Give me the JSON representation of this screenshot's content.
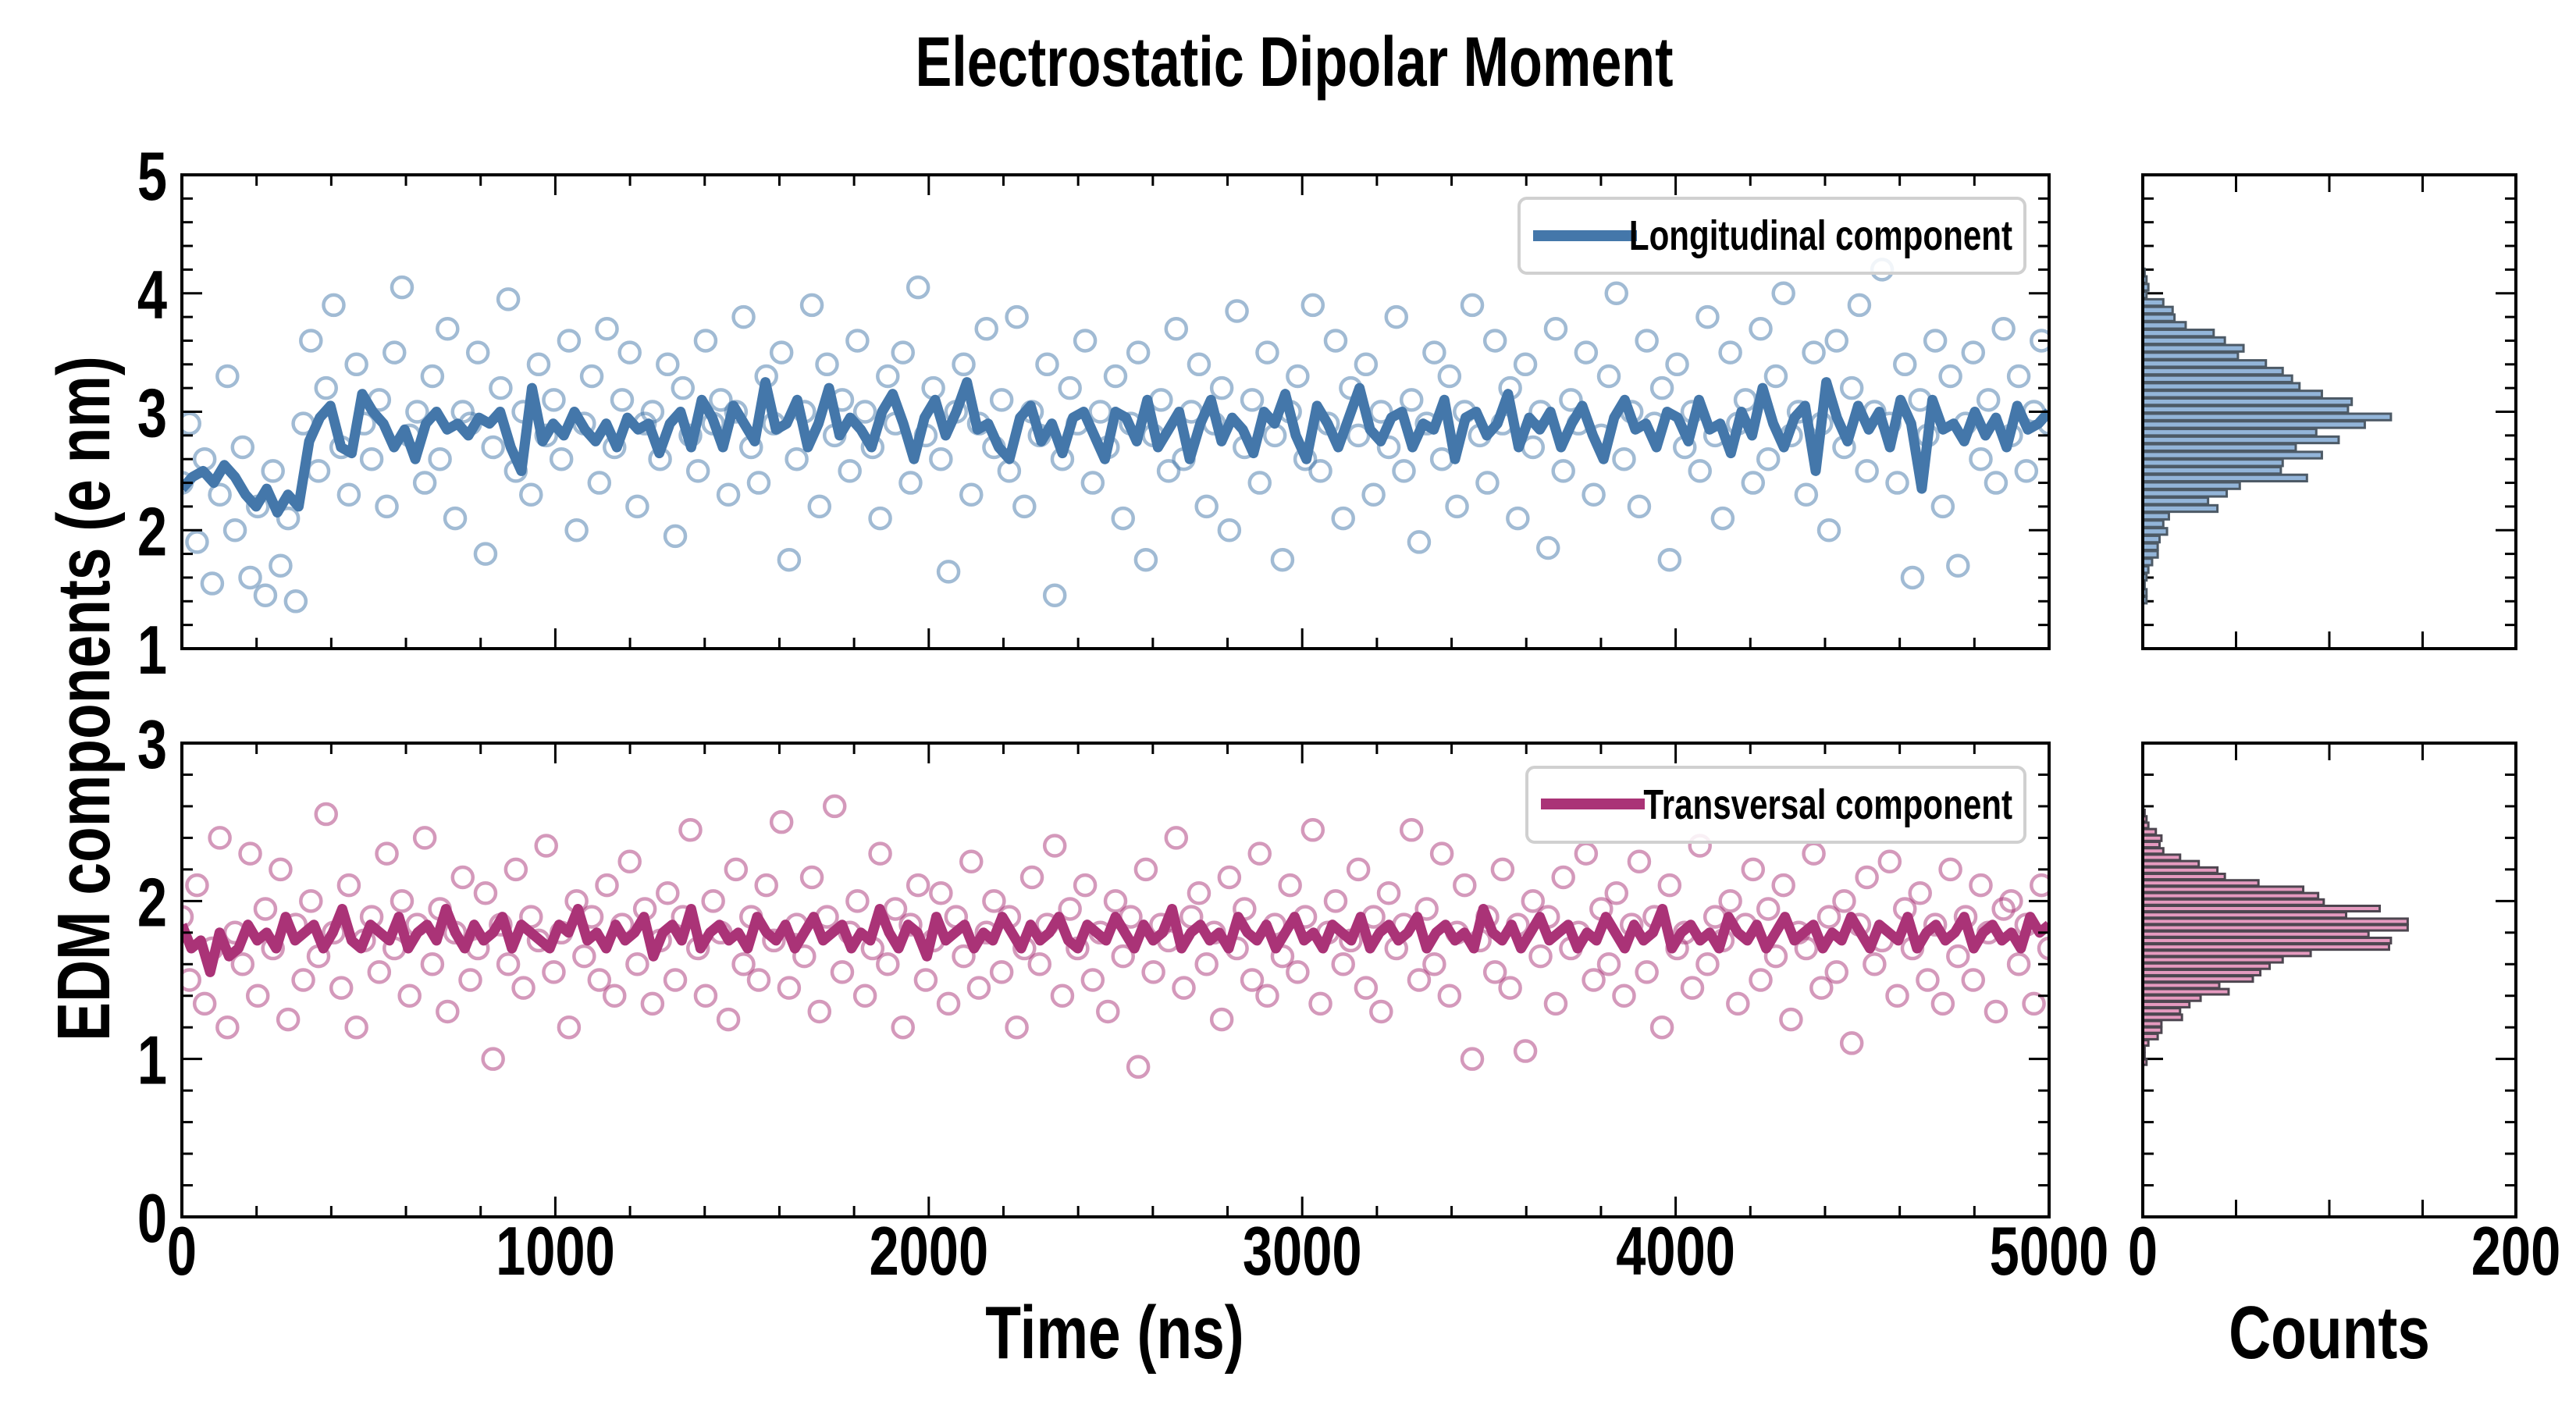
{
  "chart_data": [
    {
      "type": "scatter+line",
      "panel": "top",
      "title": "Electrostatic Dipolar Moment",
      "xlabel": "",
      "ylabel": "EDM components (e nm)",
      "xlim": [
        0,
        5000
      ],
      "ylim": [
        1,
        5
      ],
      "yticks": [
        "1",
        "2",
        "3",
        "4",
        "5"
      ],
      "legend": {
        "label": "Longitudinal component",
        "position": "top-right"
      },
      "colors": {
        "line": "#4477aa",
        "scatter": "#4477aa"
      },
      "x_range": [
        0,
        5000
      ],
      "line_values": [
        2.35,
        2.45,
        2.5,
        2.4,
        2.55,
        2.45,
        2.3,
        2.2,
        2.35,
        2.15,
        2.3,
        2.2,
        2.75,
        2.95,
        3.05,
        2.7,
        2.65,
        3.15,
        3.0,
        2.9,
        2.7,
        2.85,
        2.6,
        2.9,
        3.0,
        2.85,
        2.9,
        2.8,
        2.95,
        2.9,
        3.0,
        2.7,
        2.5,
        3.2,
        2.75,
        2.9,
        2.8,
        3.0,
        2.85,
        2.75,
        2.9,
        2.7,
        2.95,
        2.85,
        2.9,
        2.65,
        2.9,
        3.0,
        2.7,
        3.1,
        2.95,
        2.7,
        3.05,
        2.9,
        2.75,
        3.25,
        2.85,
        2.9,
        3.1,
        2.7,
        2.9,
        3.2,
        2.8,
        2.95,
        2.85,
        2.7,
        3.0,
        3.15,
        2.9,
        2.6,
        2.95,
        3.1,
        2.8,
        3.0,
        3.25,
        2.85,
        2.9,
        2.7,
        2.6,
        2.95,
        3.05,
        2.75,
        2.9,
        2.65,
        2.95,
        3.0,
        2.8,
        2.6,
        3.0,
        2.95,
        2.75,
        3.1,
        2.7,
        2.85,
        3.0,
        2.6,
        2.9,
        3.1,
        2.75,
        2.95,
        2.85,
        2.65,
        3.0,
        2.9,
        3.15,
        2.8,
        2.6,
        3.05,
        2.9,
        2.7,
        2.95,
        3.2,
        2.85,
        2.75,
        2.95,
        3.0,
        2.7,
        2.9,
        2.85,
        3.1,
        2.6,
        2.95,
        3.0,
        2.8,
        2.9,
        3.15,
        2.7,
        2.95,
        2.85,
        3.0,
        2.7,
        2.9,
        3.05,
        2.8,
        2.6,
        2.95,
        3.1,
        2.85,
        2.9,
        2.7,
        3.0,
        2.95,
        2.75,
        3.1,
        2.85,
        2.9,
        2.65,
        3.0,
        2.8,
        3.2,
        2.9,
        2.7,
        2.95,
        3.05,
        2.5,
        3.25,
        2.95,
        2.75,
        3.05,
        2.85,
        3.0,
        2.7,
        3.1,
        2.9,
        2.35,
        3.1,
        2.85,
        2.9,
        2.75,
        3.0,
        2.8,
        2.95,
        2.7,
        3.05,
        2.85,
        2.9,
        3.0
      ],
      "scatter_values": [
        2.4,
        2.9,
        1.9,
        2.6,
        1.55,
        2.3,
        3.3,
        2.0,
        2.7,
        1.6,
        2.2,
        1.45,
        2.5,
        1.7,
        2.1,
        1.4,
        2.9,
        3.6,
        2.5,
        3.2,
        3.9,
        2.7,
        2.3,
        3.4,
        2.9,
        2.6,
        3.1,
        2.2,
        3.5,
        4.05,
        2.8,
        3.0,
        2.4,
        3.3,
        2.6,
        3.7,
        2.1,
        3.0,
        2.9,
        3.5,
        1.8,
        2.7,
        3.2,
        3.95,
        2.5,
        3.0,
        2.3,
        3.4,
        2.8,
        3.1,
        2.6,
        3.6,
        2.0,
        2.9,
        3.3,
        2.4,
        3.7,
        2.7,
        3.1,
        3.5,
        2.2,
        2.9,
        3.0,
        2.6,
        3.4,
        1.95,
        3.2,
        2.8,
        2.5,
        3.6,
        2.9,
        3.1,
        2.3,
        3.0,
        3.8,
        2.7,
        2.4,
        3.3,
        2.9,
        3.5,
        1.75,
        2.6,
        3.0,
        3.9,
        2.2,
        3.4,
        2.8,
        3.1,
        2.5,
        3.6,
        3.0,
        2.7,
        2.1,
        3.3,
        2.9,
        3.5,
        2.4,
        4.05,
        2.8,
        3.2,
        2.6,
        1.65,
        3.0,
        3.4,
        2.3,
        2.9,
        3.7,
        2.7,
        3.1,
        2.5,
        3.8,
        2.2,
        3.0,
        2.8,
        3.4,
        1.45,
        2.6,
        3.2,
        2.9,
        3.6,
        2.4,
        3.0,
        2.7,
        3.3,
        2.1,
        2.9,
        3.5,
        1.75,
        2.8,
        3.1,
        2.5,
        3.7,
        2.6,
        3.0,
        3.4,
        2.2,
        2.9,
        3.2,
        2.0,
        3.85,
        2.7,
        3.1,
        2.4,
        3.5,
        2.8,
        1.75,
        3.0,
        3.3,
        2.6,
        3.9,
        2.5,
        2.9,
        3.6,
        2.1,
        3.2,
        2.8,
        3.4,
        2.3,
        3.0,
        2.7,
        3.8,
        2.5,
        3.1,
        1.9,
        2.9,
        3.5,
        2.6,
        3.3,
        2.2,
        3.0,
        3.9,
        2.8,
        2.4,
        3.6,
        2.9,
        3.2,
        2.1,
        3.4,
        2.7,
        3.0,
        1.85,
        3.7,
        2.5,
        3.1,
        2.9,
        3.5,
        2.3,
        2.8,
        3.3,
        4.0,
        2.6,
        3.0,
        2.2,
        3.6,
        2.9,
        3.2,
        1.75,
        3.4,
        2.7,
        3.0,
        2.5,
        3.8,
        2.8,
        2.1,
        3.5,
        2.9,
        3.1,
        2.4,
        3.7,
        2.6,
        3.3,
        4.0,
        2.8,
        3.0,
        2.3,
        3.5,
        2.9,
        2.0,
        3.6,
        2.7,
        3.2,
        3.9,
        2.5,
        3.0,
        4.2,
        2.9,
        2.4,
        3.4,
        1.6,
        3.1,
        2.8,
        3.6,
        2.2,
        3.3,
        1.7,
        2.9,
        3.5,
        2.6,
        3.1,
        2.4,
        3.7,
        2.8,
        3.3,
        2.5,
        3.0,
        3.6,
        2.9
      ],
      "histogram": {
        "xlabel": "",
        "xlim": [
          0,
          200
        ],
        "xticks_labeled": [],
        "bin_center_range": [
          4.18,
          1.41
        ],
        "counts": [
          1,
          2,
          3,
          2,
          11,
          16,
          17,
          23,
          38,
          44,
          54,
          51,
          66,
          75,
          80,
          84,
          96,
          112,
          110,
          133,
          119,
          93,
          105,
          82,
          96,
          75,
          74,
          88,
          52,
          45,
          35,
          40,
          14,
          11,
          13,
          9,
          8,
          8,
          5,
          3,
          2,
          1,
          2,
          2
        ],
        "colors": {
          "fill": "#93b5d9",
          "edge": "#4d5a66"
        }
      }
    },
    {
      "type": "scatter+line",
      "panel": "bottom",
      "xlabel": "Time (ns)",
      "xlim": [
        0,
        5000
      ],
      "ylim": [
        0,
        3
      ],
      "xticks": [
        "0",
        "1000",
        "2000",
        "3000",
        "4000",
        "5000"
      ],
      "yticks": [
        "0",
        "1",
        "2",
        "3"
      ],
      "legend": {
        "label": "Transversal component",
        "position": "top-right"
      },
      "colors": {
        "line": "#aa3377",
        "scatter": "#aa3377"
      },
      "x_range": [
        0,
        5000
      ],
      "line_values": [
        1.85,
        1.7,
        1.75,
        1.55,
        1.8,
        1.65,
        1.7,
        1.85,
        1.75,
        1.8,
        1.7,
        1.9,
        1.75,
        1.8,
        1.85,
        1.7,
        1.8,
        1.95,
        1.75,
        1.7,
        1.85,
        1.8,
        1.75,
        1.9,
        1.7,
        1.8,
        1.85,
        1.75,
        1.95,
        1.8,
        1.7,
        1.85,
        1.75,
        1.8,
        1.9,
        1.7,
        1.85,
        1.8,
        1.75,
        1.7,
        1.85,
        1.8,
        1.95,
        1.75,
        1.8,
        1.7,
        1.85,
        1.75,
        1.8,
        1.9,
        1.65,
        1.8,
        1.85,
        1.75,
        1.95,
        1.7,
        1.8,
        1.85,
        1.75,
        1.8,
        1.7,
        1.9,
        1.8,
        1.75,
        1.85,
        1.7,
        1.8,
        1.9,
        1.75,
        1.8,
        1.85,
        1.7,
        1.8,
        1.75,
        1.95,
        1.8,
        1.7,
        1.85,
        1.8,
        1.65,
        1.9,
        1.75,
        1.8,
        1.85,
        1.7,
        1.8,
        1.75,
        1.9,
        1.8,
        1.7,
        1.85,
        1.75,
        1.8,
        1.9,
        1.75,
        1.7,
        1.85,
        1.8,
        1.75,
        1.9,
        1.8,
        1.7,
        1.85,
        1.75,
        1.8,
        1.95,
        1.7,
        1.8,
        1.85,
        1.75,
        1.8,
        1.7,
        1.9,
        1.8,
        1.75,
        1.85,
        1.7,
        1.8,
        1.9,
        1.75,
        1.8,
        1.7,
        1.85,
        1.8,
        1.75,
        1.9,
        1.7,
        1.8,
        1.85,
        1.75,
        1.8,
        1.9,
        1.7,
        1.8,
        1.85,
        1.75,
        1.8,
        1.7,
        1.95,
        1.8,
        1.75,
        1.85,
        1.7,
        1.8,
        1.9,
        1.75,
        1.8,
        1.85,
        1.7,
        1.8,
        1.75,
        1.9,
        1.8,
        1.7,
        1.85,
        1.75,
        1.8,
        1.95,
        1.7,
        1.8,
        1.85,
        1.75,
        1.8,
        1.7,
        1.9,
        1.8,
        1.75,
        1.85,
        1.7,
        1.8,
        1.9,
        1.75,
        1.8,
        1.85,
        1.7,
        1.8,
        1.75,
        1.9,
        1.8,
        1.7,
        1.85,
        1.8,
        1.75,
        1.9,
        1.7,
        1.8,
        1.85,
        1.75,
        1.8,
        1.9,
        1.7,
        1.8,
        1.85,
        1.75,
        1.8,
        1.7,
        1.9,
        1.8,
        1.85
      ],
      "scatter_values": [
        1.9,
        1.5,
        2.1,
        1.35,
        1.7,
        2.4,
        1.2,
        1.8,
        1.6,
        2.3,
        1.4,
        1.95,
        1.7,
        2.2,
        1.25,
        1.85,
        1.5,
        2.0,
        1.65,
        2.55,
        1.8,
        1.45,
        2.1,
        1.2,
        1.75,
        1.9,
        1.55,
        2.3,
        1.7,
        2.0,
        1.4,
        1.85,
        2.4,
        1.6,
        1.95,
        1.3,
        1.8,
        2.15,
        1.5,
        1.7,
        2.05,
        1.0,
        1.85,
        1.6,
        2.2,
        1.45,
        1.9,
        1.75,
        2.35,
        1.55,
        1.8,
        1.2,
        2.0,
        1.65,
        1.9,
        1.5,
        2.1,
        1.4,
        1.85,
        2.25,
        1.6,
        1.95,
        1.35,
        1.75,
        2.05,
        1.5,
        1.9,
        2.45,
        1.7,
        1.4,
        2.0,
        1.8,
        1.25,
        2.2,
        1.6,
        1.9,
        1.5,
        2.1,
        1.75,
        2.5,
        1.45,
        1.85,
        1.65,
        2.15,
        1.3,
        1.9,
        2.6,
        1.55,
        1.8,
        2.0,
        1.4,
        1.7,
        2.3,
        1.6,
        1.95,
        1.2,
        1.85,
        2.1,
        1.5,
        1.75,
        2.05,
        1.35,
        1.9,
        1.65,
        2.25,
        1.45,
        1.8,
        2.0,
        1.55,
        1.9,
        1.2,
        1.7,
        2.15,
        1.6,
        1.85,
        2.35,
        1.4,
        1.95,
        1.7,
        2.1,
        1.5,
        1.8,
        1.3,
        2.0,
        1.65,
        1.9,
        0.95,
        2.2,
        1.55,
        1.85,
        1.75,
        2.4,
        1.45,
        1.9,
        2.05,
        1.6,
        1.8,
        1.25,
        2.15,
        1.7,
        1.95,
        1.5,
        2.3,
        1.4,
        1.85,
        1.65,
        2.1,
        1.55,
        1.9,
        2.45,
        1.35,
        1.8,
        2.0,
        1.6,
        1.75,
        2.2,
        1.45,
        1.9,
        1.3,
        2.05,
        1.7,
        1.85,
        2.45,
        1.5,
        1.95,
        1.6,
        2.3,
        1.4,
        1.8,
        2.1,
        1.0,
        1.75,
        1.9,
        1.55,
        2.2,
        1.45,
        1.85,
        1.05,
        2.0,
        1.65,
        1.9,
        1.35,
        2.15,
        1.7,
        1.8,
        2.3,
        1.5,
        1.95,
        1.6,
        2.05,
        1.4,
        1.85,
        2.25,
        1.55,
        1.9,
        1.2,
        2.1,
        1.7,
        1.8,
        1.45,
        2.35,
        1.6,
        1.9,
        1.75,
        2.0,
        1.35,
        1.85,
        2.2,
        1.5,
        1.95,
        1.65,
        2.1,
        1.25,
        1.8,
        1.7,
        2.3,
        1.45,
        1.9,
        1.55,
        2.0,
        1.1,
        1.85,
        2.15,
        1.6,
        1.75,
        2.25,
        1.4,
        1.95,
        1.7,
        2.05,
        1.5,
        1.85,
        1.35,
        2.2,
        1.65,
        1.9,
        1.5,
        2.1,
        1.8,
        1.3,
        1.95,
        2.0,
        1.6,
        1.85,
        1.35,
        2.1,
        1.7
      ],
      "histogram": {
        "xlabel": "Counts",
        "xlim": [
          0,
          200
        ],
        "xticks_labeled": [
          "0",
          "200"
        ],
        "bin_center_range": [
          2.56,
          0.98
        ],
        "counts": [
          1,
          2,
          3,
          7,
          10,
          9,
          11,
          20,
          30,
          40,
          44,
          62,
          86,
          94,
          97,
          127,
          109,
          142,
          142,
          121,
          133,
          132,
          90,
          75,
          68,
          63,
          59,
          41,
          46,
          31,
          25,
          20,
          21,
          10,
          10,
          8,
          3,
          1,
          1,
          2
        ],
        "colors": {
          "fill": "#e59abf",
          "edge": "#4d4650"
        }
      }
    }
  ]
}
